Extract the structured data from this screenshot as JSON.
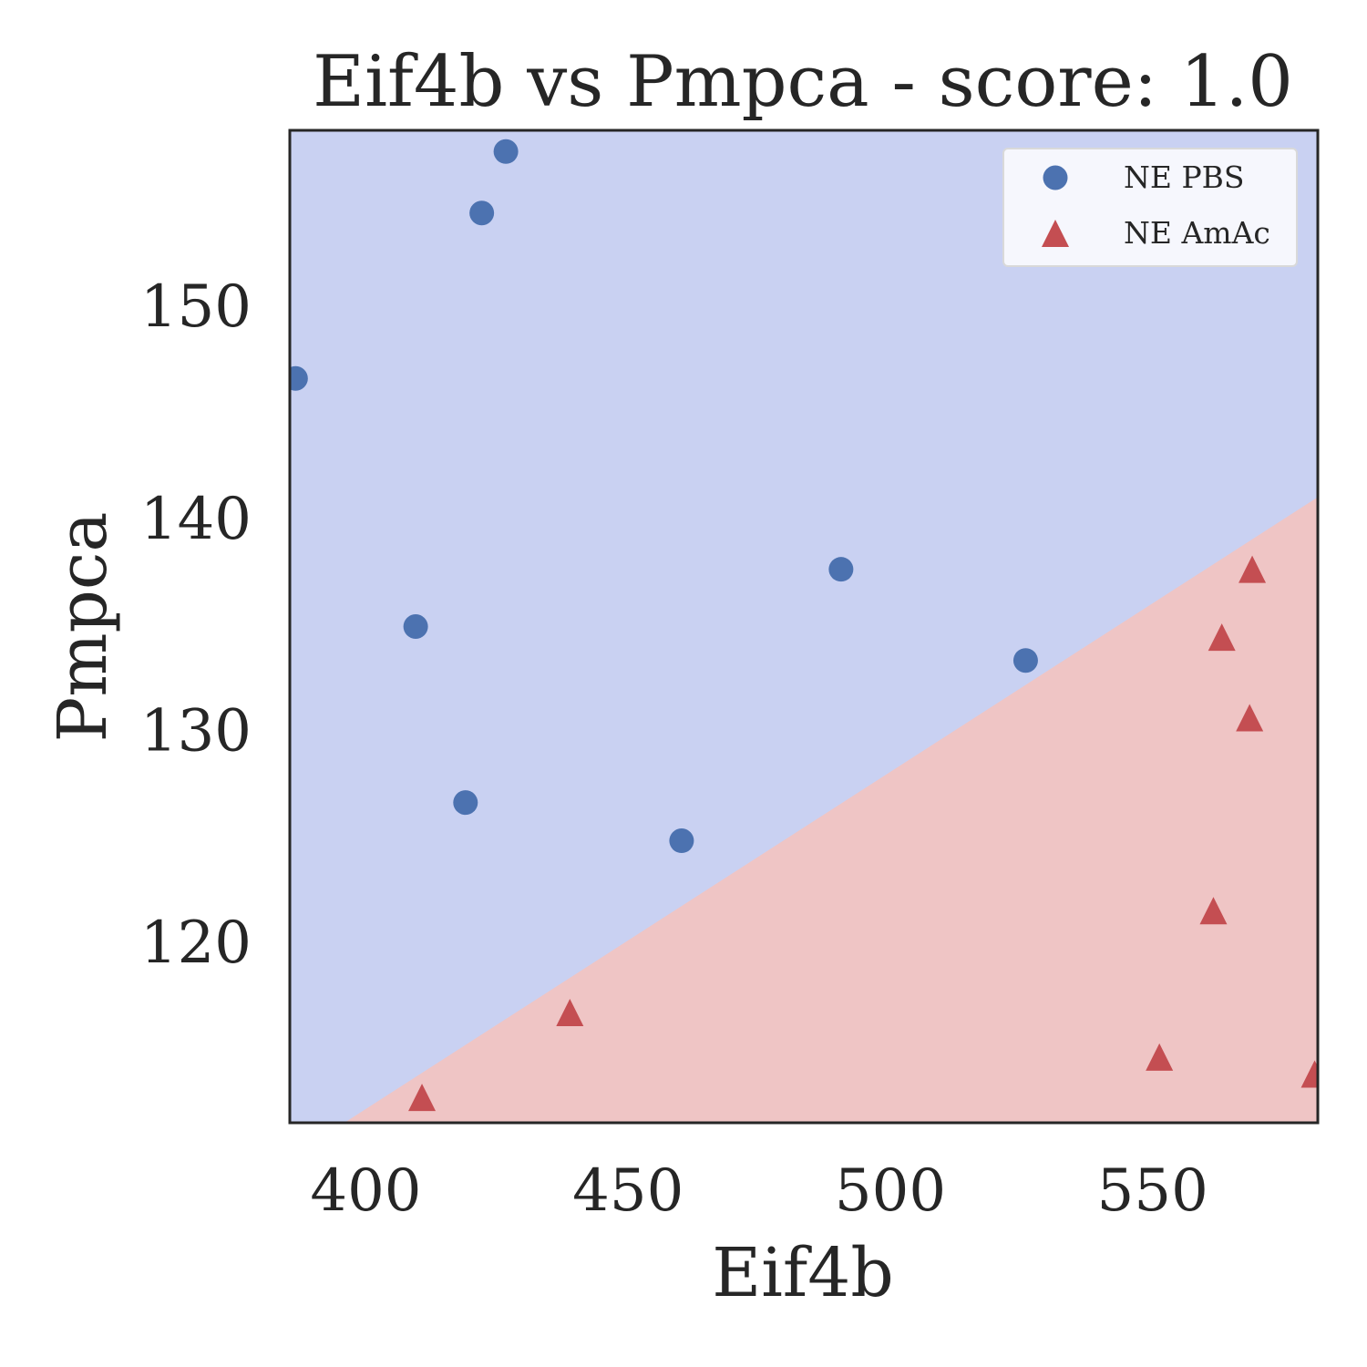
{
  "chart_data": {
    "type": "scatter",
    "title": "Eif4b vs Pmpca - score: 1.0",
    "xlabel": "Eif4b",
    "ylabel": "Pmpca",
    "xlim": [
      385.5,
      581.5
    ],
    "ylim": [
      111.5,
      158.3
    ],
    "xticks": [
      400,
      450,
      500,
      550
    ],
    "yticks": [
      120,
      130,
      140,
      150
    ],
    "grid": false,
    "legend_position": "top-right",
    "decision_boundary": {
      "points": [
        [
          395.9,
          111.5
        ],
        [
          581.5,
          141.0
        ]
      ],
      "upper_region_color": "#c9d1f2",
      "lower_region_color": "#efc5c5"
    },
    "series": [
      {
        "name": "NE PBS",
        "marker": "circle",
        "color": "#4c72b0",
        "points": [
          [
            426.7,
            157.3
          ],
          [
            422.1,
            154.4
          ],
          [
            386.6,
            146.6
          ],
          [
            409.5,
            134.9
          ],
          [
            490.6,
            137.6
          ],
          [
            525.8,
            133.3
          ],
          [
            419.0,
            126.6
          ],
          [
            460.2,
            124.8
          ]
        ]
      },
      {
        "name": "NE AmAc",
        "marker": "triangle",
        "color": "#c44e52",
        "points": [
          [
            569.0,
            137.6
          ],
          [
            563.2,
            134.4
          ],
          [
            568.5,
            130.6
          ],
          [
            561.6,
            121.5
          ],
          [
            438.9,
            116.7
          ],
          [
            551.3,
            114.6
          ],
          [
            410.7,
            112.7
          ],
          [
            580.9,
            113.8
          ]
        ]
      }
    ]
  }
}
